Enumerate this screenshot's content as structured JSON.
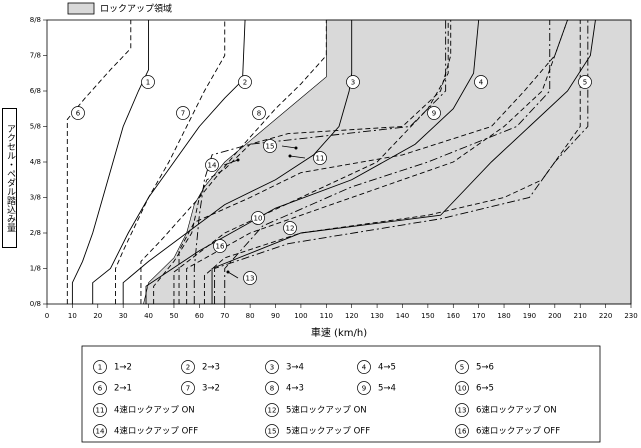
{
  "chart_data": {
    "type": "line",
    "xlabel": "車速 (km/h)",
    "ylabel": "アクセル・ペダル踏込み量",
    "xlim": [
      0,
      230
    ],
    "ylim": [
      0,
      8
    ],
    "xticks": [
      0,
      10,
      20,
      30,
      40,
      50,
      60,
      70,
      80,
      90,
      100,
      110,
      120,
      130,
      140,
      150,
      160,
      170,
      180,
      190,
      200,
      210,
      220,
      230
    ],
    "yticks": [
      {
        "value": 0,
        "label": "0/8"
      },
      {
        "value": 1,
        "label": "1/8"
      },
      {
        "value": 2,
        "label": "2/8"
      },
      {
        "value": 3,
        "label": "3/8"
      },
      {
        "value": 4,
        "label": "4/8"
      },
      {
        "value": 5,
        "label": "5/8"
      },
      {
        "value": 6,
        "label": "6/8"
      },
      {
        "value": 7,
        "label": "7/8"
      },
      {
        "value": 8,
        "label": "8/8"
      }
    ],
    "grid": false,
    "region": {
      "name": "ロックアップ領域",
      "color": "#d9d9d9",
      "x": [
        38,
        40,
        50,
        55,
        58,
        62,
        70,
        80,
        90,
        100,
        110,
        110,
        230,
        230
      ],
      "values": [
        0,
        0.6,
        1.3,
        2,
        2.8,
        3.3,
        4,
        4.6,
        5.2,
        5.8,
        6.4,
        8,
        8,
        0
      ]
    },
    "series": [
      {
        "label": "1",
        "name": "1→2",
        "style": "solid",
        "color": "#000000",
        "x": [
          10,
          10,
          14,
          18,
          22,
          26,
          30,
          36,
          40,
          40
        ],
        "values": [
          0,
          0.6,
          1.2,
          2,
          3,
          4,
          5,
          6,
          6.6,
          8
        ]
      },
      {
        "label": "2",
        "name": "2→3",
        "style": "solid",
        "color": "#000000",
        "x": [
          18,
          18,
          25,
          32,
          40,
          50,
          60,
          70,
          77,
          78
        ],
        "values": [
          0,
          0.6,
          1,
          2,
          3,
          4,
          5,
          5.8,
          6.3,
          8
        ]
      },
      {
        "label": "3",
        "name": "3→4",
        "style": "solid",
        "color": "#000000",
        "x": [
          30,
          30,
          40,
          55,
          70,
          90,
          105,
          115,
          119,
          120,
          120
        ],
        "values": [
          0,
          0.6,
          1.2,
          2,
          2.8,
          3.5,
          4.2,
          5,
          6,
          6.5,
          8
        ]
      },
      {
        "label": "4",
        "name": "4→5",
        "style": "solid",
        "color": "#000000",
        "x": [
          39,
          39,
          60,
          90,
          120,
          145,
          160,
          168,
          170
        ],
        "values": [
          0,
          0.5,
          1.5,
          2.7,
          3.5,
          4.5,
          5.5,
          6.5,
          8
        ]
      },
      {
        "label": "5",
        "name": "5→6",
        "style": "solid",
        "color": "#000000",
        "x": [
          65,
          65,
          100,
          155,
          175,
          190,
          205,
          214,
          216
        ],
        "values": [
          0,
          1,
          2,
          2.5,
          4,
          5,
          6,
          7,
          8
        ]
      },
      {
        "label": "6",
        "name": "2→1",
        "style": "dashed",
        "color": "#000000",
        "x": [
          8,
          8,
          15,
          25,
          33,
          33
        ],
        "values": [
          0,
          5.2,
          5.8,
          6.6,
          7.2,
          8
        ]
      },
      {
        "label": "7",
        "name": "3→2",
        "style": "dashed",
        "color": "#000000",
        "x": [
          27,
          27,
          30,
          40,
          48,
          55,
          62,
          70,
          70
        ],
        "values": [
          0,
          1,
          1.5,
          3,
          4,
          5,
          6,
          7,
          8
        ]
      },
      {
        "label": "8",
        "name": "4→3",
        "style": "dashed",
        "color": "#000000",
        "x": [
          37,
          37,
          45,
          60,
          75,
          90,
          100,
          110,
          110
        ],
        "values": [
          0,
          1.2,
          1.8,
          3,
          4.3,
          5.5,
          6.2,
          7,
          8
        ]
      },
      {
        "label": "9",
        "name": "5→4",
        "style": "dashed",
        "color": "#000000",
        "x": [
          50,
          50,
          70,
          100,
          130,
          150,
          158,
          158
        ],
        "values": [
          0,
          0.9,
          2,
          3,
          4,
          5.5,
          6.5,
          8
        ]
      },
      {
        "label": "10",
        "name": "6→5",
        "style": "dashed",
        "color": "#000000",
        "x": [
          55,
          55,
          80,
          120,
          160,
          180,
          195,
          200,
          205
        ],
        "values": [
          0,
          1,
          2,
          3,
          4,
          5,
          6,
          7,
          8
        ]
      },
      {
        "label": "11",
        "name": "4速ロックアップ ON",
        "style": "dashdot",
        "color": "#000000",
        "x": [
          58,
          58,
          60,
          62,
          65,
          80,
          143,
          157,
          157
        ],
        "values": [
          0,
          1,
          2.5,
          3.5,
          4.2,
          4.5,
          5,
          6,
          8
        ]
      },
      {
        "label": "12",
        "name": "5速ロックアップ ON",
        "style": "dashdot",
        "color": "#000000",
        "x": [
          70,
          70,
          85,
          120,
          150,
          185,
          198,
          198
        ],
        "values": [
          0,
          1,
          2.2,
          3.3,
          4,
          5,
          6,
          8
        ]
      },
      {
        "label": "13",
        "name": "6速ロックアップ ON",
        "style": "dashdot",
        "color": "#000000",
        "x": [
          66,
          66,
          95,
          155,
          190,
          200,
          213,
          213
        ],
        "values": [
          0,
          1,
          1.7,
          2.4,
          3,
          4,
          5,
          8
        ]
      },
      {
        "label": "14",
        "name": "4速ロックアップ OFF",
        "style": "dashed",
        "color": "#000000",
        "x": [
          42,
          42,
          50,
          57,
          60,
          63,
          70,
          80,
          95,
          140,
          155,
          159,
          159
        ],
        "values": [
          0,
          0.5,
          1.2,
          2,
          3,
          3.5,
          3.8,
          4.5,
          4.8,
          5,
          6,
          7,
          8
        ]
      },
      {
        "label": "15",
        "name": "5速ロックアップ OFF",
        "style": "dashed",
        "color": "#000000",
        "x": [
          52,
          52,
          58,
          80,
          100,
          140,
          175,
          188,
          200,
          205
        ],
        "values": [
          0,
          1.5,
          2.3,
          3,
          3.7,
          4.2,
          5,
          6,
          7,
          8
        ]
      },
      {
        "label": "16",
        "name": "6速ロックアップ OFF",
        "style": "dashed",
        "color": "#000000",
        "x": [
          62,
          62,
          70,
          100,
          150,
          180,
          195,
          210,
          210
        ],
        "values": [
          0,
          0.8,
          1.3,
          2,
          2.5,
          3,
          3.5,
          5,
          8
        ]
      }
    ]
  }
}
